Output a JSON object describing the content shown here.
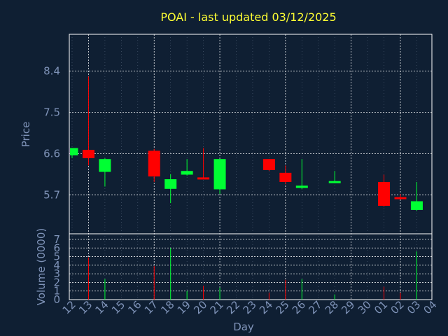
{
  "chart_data": [
    {
      "type": "candlestick",
      "title": "POAI - last updated 03/12/2025",
      "ylabel": "Price",
      "y_ticks": [
        "8.4",
        "7.5",
        "6.6",
        "5.7"
      ],
      "ylim": [
        4.85,
        9.2
      ],
      "grid": true,
      "colors": {
        "up": "#00ff33",
        "down": "#ff0000"
      },
      "candles": [
        {
          "day": "12",
          "open": 6.56,
          "high": 6.72,
          "low": 6.5,
          "close": 6.72
        },
        {
          "day": "13",
          "open": 6.68,
          "high": 8.28,
          "low": 6.34,
          "close": 6.5
        },
        {
          "day": "14",
          "open": 6.2,
          "high": 6.5,
          "low": 5.88,
          "close": 6.48
        },
        {
          "day": "17",
          "open": 6.66,
          "high": 6.7,
          "low": 5.98,
          "close": 6.1
        },
        {
          "day": "18",
          "open": 5.83,
          "high": 6.15,
          "low": 5.52,
          "close": 6.04
        },
        {
          "day": "19",
          "open": 6.14,
          "high": 6.48,
          "low": 6.12,
          "close": 6.22
        },
        {
          "day": "20",
          "open": 6.08,
          "high": 6.72,
          "low": 6.04,
          "close": 6.05
        },
        {
          "day": "21",
          "open": 5.82,
          "high": 6.48,
          "low": 5.72,
          "close": 6.48
        },
        {
          "day": "24",
          "open": 6.48,
          "high": 6.48,
          "low": 6.22,
          "close": 6.24
        },
        {
          "day": "25",
          "open": 6.18,
          "high": 6.34,
          "low": 5.93,
          "close": 5.98
        },
        {
          "day": "26",
          "open": 5.85,
          "high": 6.48,
          "low": 5.82,
          "close": 5.9
        },
        {
          "day": "28",
          "open": 5.98,
          "high": 6.22,
          "low": 5.96,
          "close": 6.0
        },
        {
          "day": "01",
          "open": 5.98,
          "high": 6.14,
          "low": 5.44,
          "close": 5.46
        },
        {
          "day": "02",
          "open": 5.65,
          "high": 5.72,
          "low": 5.6,
          "close": 5.63
        },
        {
          "day": "03",
          "open": 5.37,
          "high": 5.98,
          "low": 5.35,
          "close": 5.56
        }
      ]
    },
    {
      "type": "bar",
      "xlabel": "Day",
      "ylabel": "Volume (0000)",
      "categories": [
        "12",
        "13",
        "14",
        "15",
        "16",
        "17",
        "18",
        "19",
        "20",
        "21",
        "22",
        "23",
        "24",
        "25",
        "26",
        "27",
        "28",
        "29",
        "30",
        "01",
        "02",
        "03",
        "04"
      ],
      "values": [
        0,
        4.9,
        2.4,
        0,
        0,
        3.9,
        6.0,
        1.0,
        1.6,
        1.4,
        0,
        0,
        0.8,
        2.3,
        2.4,
        0,
        0.6,
        0,
        0,
        1.5,
        0.8,
        5.6,
        0
      ],
      "bar_colors": [
        "up",
        "down",
        "up",
        "none",
        "none",
        "down",
        "up",
        "up",
        "down",
        "up",
        "none",
        "none",
        "down",
        "down",
        "up",
        "none",
        "up",
        "none",
        "none",
        "down",
        "down",
        "up",
        "none"
      ],
      "y_ticks": [
        "0",
        "1",
        "2",
        "3",
        "4",
        "5",
        "6",
        "7"
      ],
      "ylim": [
        0,
        7
      ],
      "grid": true
    }
  ]
}
